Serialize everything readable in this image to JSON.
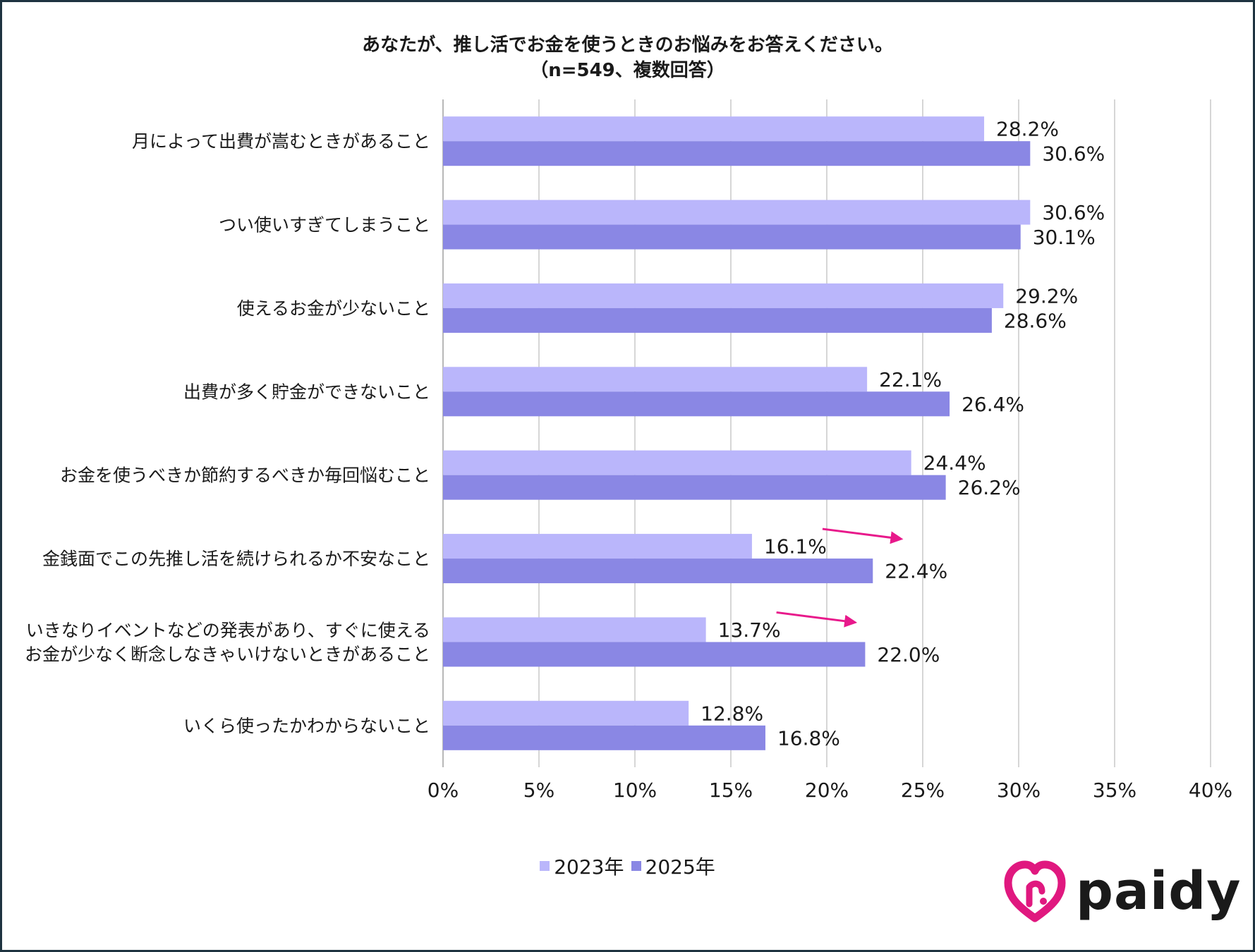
{
  "colors": {
    "series_2023": "#bab6fb",
    "series_2025": "#8a87e4",
    "arrow": "#e8198b",
    "gridline": "#c8c8c8",
    "logo_accent": "#e0187f"
  },
  "chart_data": {
    "type": "bar",
    "orientation": "horizontal",
    "title": "あなたが、推し活でお金を使うときのお悩みをお答えください。",
    "subtitle": "（n=549、複数回答）",
    "xlabel": "",
    "ylabel": "",
    "xlim": [
      0,
      40
    ],
    "x_ticks": [
      "0%",
      "5%",
      "10%",
      "15%",
      "20%",
      "25%",
      "30%",
      "35%",
      "40%"
    ],
    "grid": true,
    "legend_position": "bottom",
    "categories": [
      [
        "月によって出費が嵩むときがあること"
      ],
      [
        "つい使いすぎてしまうこと"
      ],
      [
        "使えるお金が少ないこと"
      ],
      [
        "出費が多く貯金ができないこと"
      ],
      [
        "お金を使うべきか節約するべきか毎回悩むこと"
      ],
      [
        "金銭面でこの先推し活を続けられるか不安なこと"
      ],
      [
        "いきなりイベントなどの発表があり、すぐに使える",
        "お金が少なく断念しなきゃいけないときがあること"
      ],
      [
        "いくら使ったかわからないこと"
      ]
    ],
    "series": [
      {
        "name": "2023年",
        "values": [
          28.2,
          30.6,
          29.2,
          22.1,
          24.4,
          16.1,
          13.7,
          12.8
        ],
        "labels": [
          "28.2%",
          "30.6%",
          "29.2%",
          "22.1%",
          "24.4%",
          "16.1%",
          "13.7%",
          "12.8%"
        ]
      },
      {
        "name": "2025年",
        "values": [
          30.6,
          30.1,
          28.6,
          26.4,
          26.2,
          22.4,
          22.0,
          16.8
        ],
        "labels": [
          "30.6%",
          "30.1%",
          "28.6%",
          "26.4%",
          "26.2%",
          "22.4%",
          "22.0%",
          "16.8%"
        ]
      }
    ],
    "annotations": [
      {
        "type": "arrow",
        "category_index": 5
      },
      {
        "type": "arrow",
        "category_index": 6
      }
    ]
  },
  "legend": {
    "items": [
      {
        "label": "2023年"
      },
      {
        "label": "2025年"
      }
    ]
  },
  "logo": {
    "text": "paidy",
    "icon": "paidy-heart-icon"
  }
}
